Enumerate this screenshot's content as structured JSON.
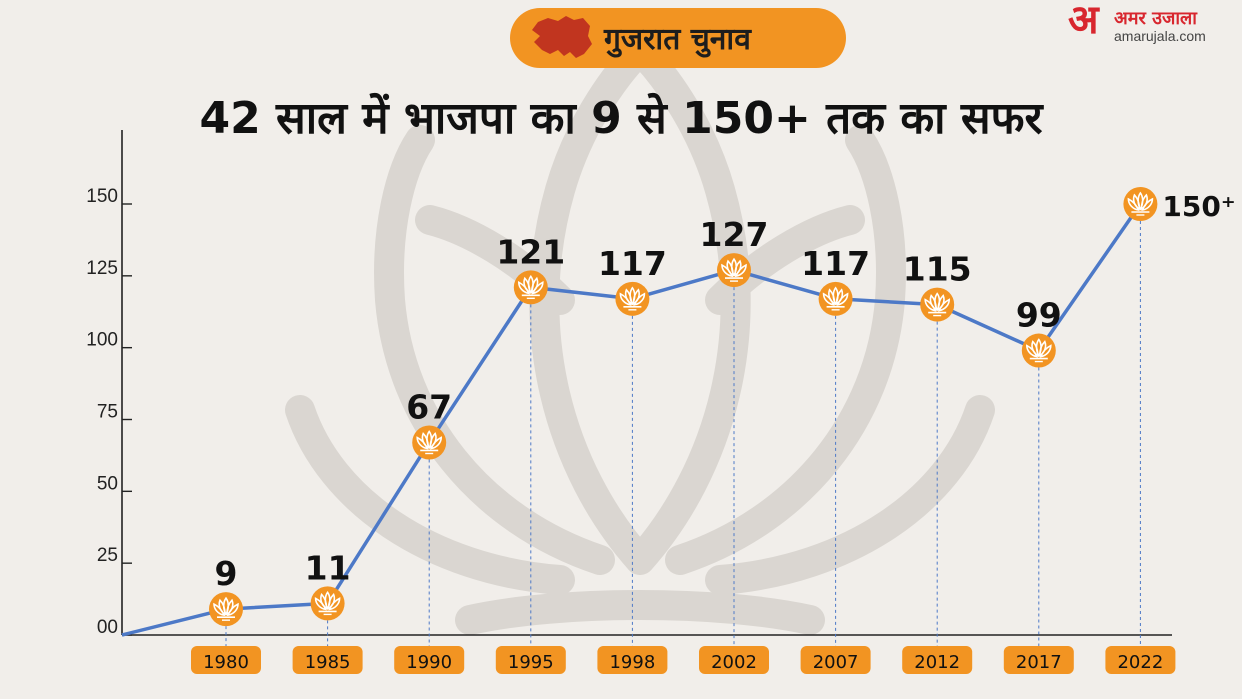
{
  "header": {
    "badge_text": "गुजरात चुनाव",
    "title": "42 साल में भाजपा का 9 से 150+ तक का सफर"
  },
  "brand": {
    "logo_letter": "अ",
    "logo_hindi": "अमर उजाला",
    "logo_domain": "amarujala.com"
  },
  "colors": {
    "background": "#f1eeea",
    "accent_orange": "#f29422",
    "line_blue": "#4d79c7",
    "map_red": "#c1351f",
    "brand_red": "#d8262e"
  },
  "icons": {
    "marker": "bjp-lotus-icon",
    "badge": "gujarat-map-icon"
  },
  "chart_data": {
    "type": "line",
    "title": "42 साल में भाजपा का 9 से 150+ तक का सफर",
    "xlabel": "",
    "ylabel": "",
    "categories": [
      "1980",
      "1985",
      "1990",
      "1995",
      "1998",
      "2002",
      "2007",
      "2012",
      "2017",
      "2022"
    ],
    "values": [
      9,
      11,
      67,
      121,
      117,
      127,
      117,
      115,
      99,
      150
    ],
    "data_labels": [
      "9",
      "11",
      "67",
      "121",
      "117",
      "127",
      "117",
      "115",
      "99",
      "150⁺"
    ],
    "y_ticks": [
      0,
      25,
      50,
      75,
      100,
      125,
      150
    ],
    "y_tick_labels": [
      "00",
      "25",
      "50",
      "75",
      "100",
      "125",
      "150"
    ],
    "ylim": [
      0,
      175
    ],
    "grid": false,
    "legend": "none"
  }
}
